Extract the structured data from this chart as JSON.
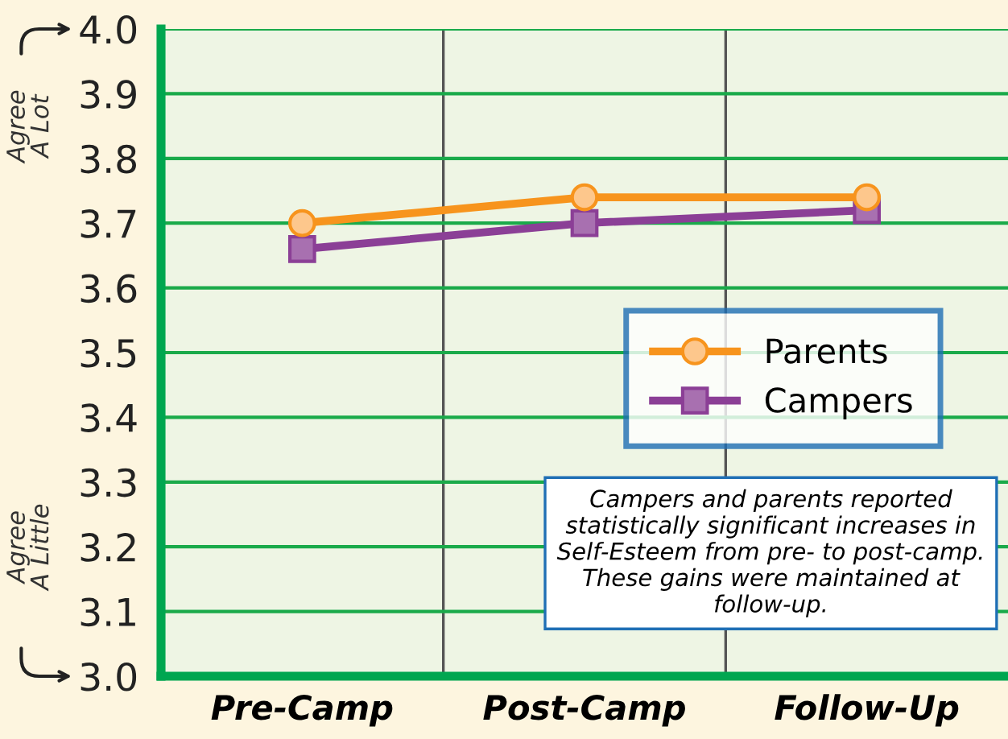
{
  "chart_data": {
    "type": "line",
    "categories": [
      "Pre-Camp",
      "Post-Camp",
      "Follow-Up"
    ],
    "series": [
      {
        "name": "Parents",
        "color": "#f7941d",
        "marker": "circle",
        "values": [
          3.7,
          3.74,
          3.74
        ]
      },
      {
        "name": "Campers",
        "color": "#8b3f96",
        "marker": "square",
        "values": [
          3.66,
          3.7,
          3.72
        ]
      }
    ],
    "ylim": [
      3.0,
      4.0
    ],
    "yticks": [
      {
        "value": 3.0,
        "label": "3.0"
      },
      3.1,
      3.2,
      3.3,
      3.4,
      3.5,
      3.6,
      3.7,
      3.8,
      3.9,
      {
        "value": 4.0,
        "label": "4.0"
      }
    ],
    "grid": true,
    "legend": "right",
    "line_style": "solid",
    "annotations": [
      "Agree\nA Lot",
      "Agree\nA Little",
      "Campers and parents reported statistically significant increases in Self-Esteem from pre- to post-camp. These gains were maintained at follow-up."
    ]
  }
}
